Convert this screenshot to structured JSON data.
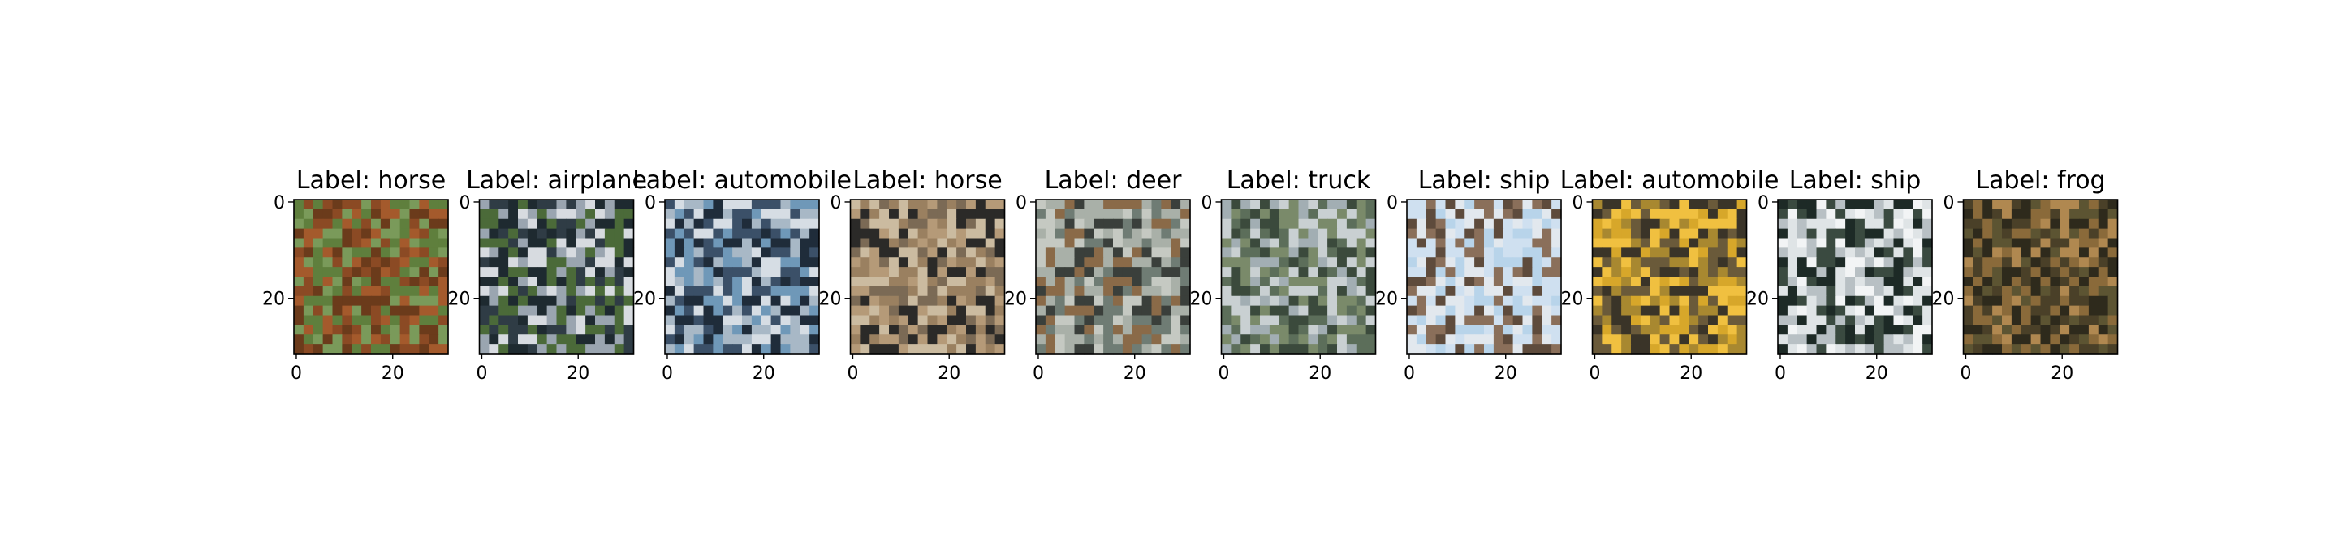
{
  "figure": {
    "panels": [
      {
        "title": "Label: horse",
        "label": "horse",
        "colors": [
          "#7a9a5a",
          "#8b4a24",
          "#a45a2c",
          "#5f7f3d",
          "#6b3b1b"
        ]
      },
      {
        "title": "Label: airplane",
        "label": "airplane",
        "colors": [
          "#2f3c45",
          "#d7dbe0",
          "#4b6a39",
          "#9aa5b0",
          "#1e2a30"
        ]
      },
      {
        "title": "Label: automobile",
        "label": "automobile",
        "colors": [
          "#6f98b8",
          "#1f2c3a",
          "#a8b8c6",
          "#3b5068",
          "#d6dde4"
        ]
      },
      {
        "title": "Label: horse",
        "label": "horse",
        "colors": [
          "#7b6a55",
          "#b59a78",
          "#2b2a28",
          "#9a8060",
          "#cbbba0"
        ]
      },
      {
        "title": "Label: deer",
        "label": "deer",
        "colors": [
          "#6f7c74",
          "#3a3f3b",
          "#a9b0a8",
          "#8a6a48",
          "#c5c9c2"
        ]
      },
      {
        "title": "Label: truck",
        "label": "truck",
        "colors": [
          "#3b4a3c",
          "#c9d0d2",
          "#7a8a6a",
          "#5c6e5a",
          "#a2aeb3"
        ]
      },
      {
        "title": "Label: ship",
        "label": "ship",
        "colors": [
          "#b8d4ea",
          "#8a6f5a",
          "#e2e8ee",
          "#5e4b3c",
          "#cfe0f0"
        ]
      },
      {
        "title": "Label: automobile",
        "label": "automobile",
        "colors": [
          "#d7a72a",
          "#6a5a3a",
          "#f0c040",
          "#3a3428",
          "#a88830"
        ]
      },
      {
        "title": "Label: ship",
        "label": "ship",
        "colors": [
          "#1d2a26",
          "#dfe4e6",
          "#3a4a40",
          "#b8c0c4",
          "#f2f4f5"
        ]
      },
      {
        "title": "Label: frog",
        "label": "frog",
        "colors": [
          "#4a4028",
          "#8a6a3a",
          "#2e2a1c",
          "#b08850",
          "#5c5432"
        ]
      }
    ],
    "xticks": [
      "0",
      "20"
    ],
    "yticks": [
      "0",
      "20"
    ],
    "image_size": 32
  }
}
